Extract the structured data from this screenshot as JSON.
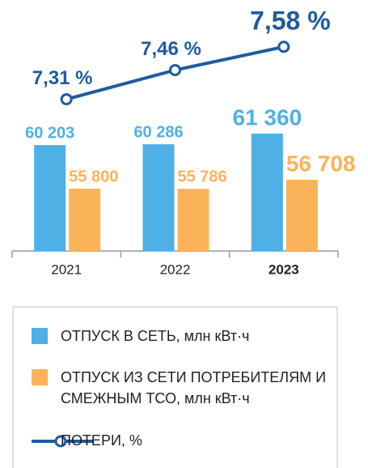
{
  "chart_data": {
    "type": "bar",
    "categories": [
      "2021",
      "2022",
      "2023"
    ],
    "ylim": [
      49500,
      63000
    ],
    "y2lim": [
      7.0,
      7.8
    ],
    "series": [
      {
        "name": "ОТПУСК В СЕТЬ, млн кВт·ч",
        "color": "#4fb0e5",
        "values": [
          60203,
          60286,
          61360
        ],
        "value_labels": [
          "60 203",
          "60 286",
          "61 360"
        ]
      },
      {
        "name": "ОТПУСК ИЗ СЕТИ ПОТРЕБИТЕЛЯМ И СМЕЖНЫМ ТСО, млн кВт·ч",
        "color": "#fbb35a",
        "values": [
          55800,
          55786,
          56708
        ],
        "value_labels": [
          "55 800",
          "55 786",
          "56 708"
        ]
      },
      {
        "name": "ПОТЕРИ, %",
        "type": "line",
        "axis": "y2",
        "color": "#1f5b9e",
        "values": [
          7.31,
          7.46,
          7.58
        ],
        "value_labels": [
          "7,31 %",
          "7,46 %",
          "7,58 %"
        ]
      }
    ]
  }
}
